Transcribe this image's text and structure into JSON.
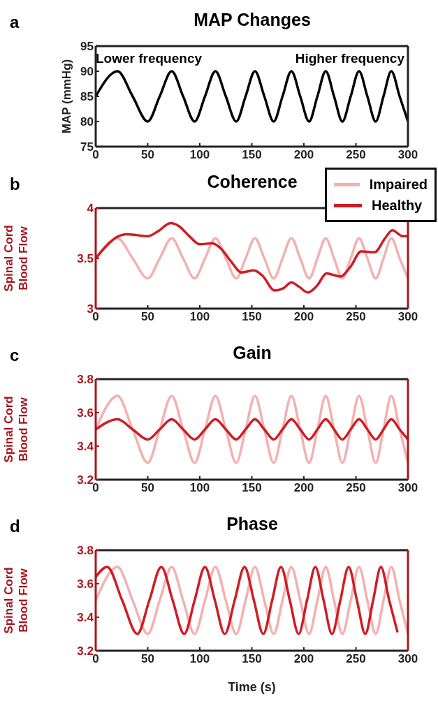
{
  "chart_data": [
    {
      "type": "line",
      "title": "MAP Changes",
      "ylabel": "MAP (mmHg)",
      "annotations": [
        "a",
        "Lower frequency",
        "Higher frequency"
      ],
      "xlim": [
        0,
        300
      ],
      "xticks": [
        0,
        50,
        100,
        150,
        200,
        250,
        300
      ],
      "ylim": [
        75,
        95
      ],
      "yticks": [
        75,
        80,
        85,
        90,
        95
      ],
      "legend": false,
      "series": [
        {
          "color": "#000000",
          "x": [
            0,
            21,
            35.5,
            50,
            61.5,
            73,
            84,
            95,
            105,
            115,
            125,
            135,
            144,
            153,
            162,
            171,
            179.5,
            188,
            196.5,
            205,
            213,
            221,
            229,
            237,
            245,
            253,
            261,
            269,
            276.5,
            284,
            292,
            300
          ],
          "values": [
            85,
            90,
            85,
            80,
            85,
            90,
            85,
            80,
            85,
            90,
            85,
            80,
            85,
            90,
            85,
            80,
            85,
            90,
            85,
            80,
            85,
            90,
            85,
            80,
            85,
            90,
            85,
            80,
            85,
            90,
            85,
            80
          ]
        }
      ]
    },
    {
      "type": "line",
      "title": "Coherence",
      "ylabel": "Spinal Cord Blood Flow",
      "annotations": [
        "b"
      ],
      "xlim": [
        0,
        300
      ],
      "xticks": [
        0,
        50,
        100,
        150,
        200,
        250,
        300
      ],
      "ylim": [
        3,
        4
      ],
      "yticks": [
        3,
        3.5,
        4
      ],
      "legend": "top right",
      "series": [
        {
          "name": "Impaired",
          "color": "#f4b0b0",
          "x": [
            0,
            21,
            35.5,
            50,
            61.5,
            73,
            84,
            95,
            105,
            115,
            125,
            135,
            144,
            153,
            162,
            171,
            179.5,
            188,
            196.5,
            205,
            213,
            221,
            229,
            237,
            245,
            253,
            261,
            269,
            276.5,
            284,
            292,
            300
          ],
          "values": [
            3.5,
            3.7,
            3.5,
            3.3,
            3.5,
            3.7,
            3.5,
            3.3,
            3.5,
            3.7,
            3.5,
            3.3,
            3.5,
            3.7,
            3.5,
            3.3,
            3.5,
            3.7,
            3.5,
            3.3,
            3.5,
            3.7,
            3.5,
            3.3,
            3.5,
            3.7,
            3.5,
            3.3,
            3.5,
            3.7,
            3.5,
            3.3
          ]
        },
        {
          "name": "Healthy",
          "color": "#d01c24",
          "x": [
            0,
            10,
            20,
            30,
            40,
            50,
            60,
            72,
            80,
            90,
            100,
            112,
            120,
            130,
            140,
            152,
            160,
            172,
            180,
            188,
            195,
            204,
            212,
            222,
            230,
            235,
            245,
            255,
            268,
            278,
            285,
            295,
            300
          ],
          "values": [
            3.5,
            3.62,
            3.71,
            3.74,
            3.73,
            3.72,
            3.77,
            3.85,
            3.82,
            3.72,
            3.64,
            3.65,
            3.6,
            3.47,
            3.36,
            3.38,
            3.33,
            3.18,
            3.2,
            3.26,
            3.22,
            3.16,
            3.22,
            3.35,
            3.33,
            3.32,
            3.42,
            3.57,
            3.56,
            3.7,
            3.78,
            3.72,
            3.72
          ]
        }
      ]
    },
    {
      "type": "line",
      "title": "Gain",
      "ylabel": "Spinal Cord Blood Flow",
      "annotations": [
        "c"
      ],
      "xlim": [
        0,
        300
      ],
      "xticks": [
        0,
        50,
        100,
        150,
        200,
        250,
        300
      ],
      "ylim": [
        3.2,
        3.8
      ],
      "yticks": [
        3.2,
        3.4,
        3.6,
        3.8
      ],
      "legend": false,
      "series": [
        {
          "color": "#f4b0b0",
          "x": [
            0,
            21,
            35.5,
            50,
            61.5,
            73,
            84,
            95,
            105,
            115,
            125,
            135,
            144,
            153,
            162,
            171,
            179.5,
            188,
            196.5,
            205,
            213,
            221,
            229,
            237,
            245,
            253,
            261,
            269,
            276.5,
            284,
            292,
            300
          ],
          "values": [
            3.5,
            3.7,
            3.5,
            3.3,
            3.5,
            3.7,
            3.5,
            3.3,
            3.5,
            3.7,
            3.5,
            3.3,
            3.5,
            3.7,
            3.5,
            3.3,
            3.5,
            3.7,
            3.5,
            3.3,
            3.5,
            3.7,
            3.5,
            3.3,
            3.5,
            3.7,
            3.5,
            3.3,
            3.5,
            3.7,
            3.5,
            3.3
          ]
        },
        {
          "color": "#d01c24",
          "x": [
            0,
            21,
            35.5,
            50,
            61.5,
            73,
            84,
            95,
            105,
            115,
            125,
            135,
            144,
            153,
            162,
            171,
            179.5,
            188,
            196.5,
            205,
            213,
            221,
            229,
            237,
            245,
            253,
            261,
            269,
            276.5,
            284,
            292,
            300
          ],
          "values": [
            3.5,
            3.56,
            3.5,
            3.44,
            3.5,
            3.56,
            3.5,
            3.44,
            3.5,
            3.56,
            3.5,
            3.44,
            3.5,
            3.56,
            3.5,
            3.44,
            3.5,
            3.56,
            3.5,
            3.44,
            3.5,
            3.56,
            3.5,
            3.44,
            3.5,
            3.56,
            3.5,
            3.44,
            3.5,
            3.56,
            3.5,
            3.44
          ]
        }
      ]
    },
    {
      "type": "line",
      "title": "Phase",
      "xlabel": "Time (s)",
      "ylabel": "Spinal Cord Blood Flow",
      "annotations": [
        "d"
      ],
      "xlim": [
        0,
        300
      ],
      "xticks": [
        0,
        50,
        100,
        150,
        200,
        250,
        300
      ],
      "ylim": [
        3.2,
        3.8
      ],
      "yticks": [
        3.2,
        3.4,
        3.6,
        3.8
      ],
      "legend": false,
      "series": [
        {
          "color": "#f4b0b0",
          "x": [
            0,
            21,
            35.5,
            50,
            61.5,
            73,
            84,
            95,
            105,
            115,
            125,
            135,
            144,
            153,
            162,
            171,
            179.5,
            188,
            196.5,
            205,
            213,
            221,
            229,
            237,
            245,
            253,
            261,
            269,
            276.5,
            284,
            292,
            300
          ],
          "values": [
            3.5,
            3.7,
            3.5,
            3.3,
            3.5,
            3.7,
            3.5,
            3.3,
            3.5,
            3.7,
            3.5,
            3.3,
            3.5,
            3.7,
            3.5,
            3.3,
            3.5,
            3.7,
            3.5,
            3.3,
            3.5,
            3.7,
            3.5,
            3.3,
            3.5,
            3.7,
            3.5,
            3.3,
            3.5,
            3.7,
            3.5,
            3.3
          ]
        },
        {
          "color": "#d01c24",
          "x": [
            0,
            11,
            25.5,
            40,
            51.5,
            63,
            74,
            85,
            95,
            105,
            114.5,
            124,
            133.5,
            143,
            152,
            161,
            169.5,
            178,
            186.5,
            195,
            203,
            211,
            219,
            227,
            235,
            243,
            251,
            259,
            266.5,
            274,
            282,
            290
          ],
          "values": [
            3.64,
            3.7,
            3.5,
            3.3,
            3.5,
            3.7,
            3.5,
            3.3,
            3.5,
            3.7,
            3.5,
            3.3,
            3.5,
            3.7,
            3.5,
            3.3,
            3.5,
            3.7,
            3.5,
            3.3,
            3.5,
            3.7,
            3.5,
            3.3,
            3.5,
            3.7,
            3.5,
            3.3,
            3.5,
            3.7,
            3.5,
            3.31
          ]
        }
      ]
    }
  ]
}
